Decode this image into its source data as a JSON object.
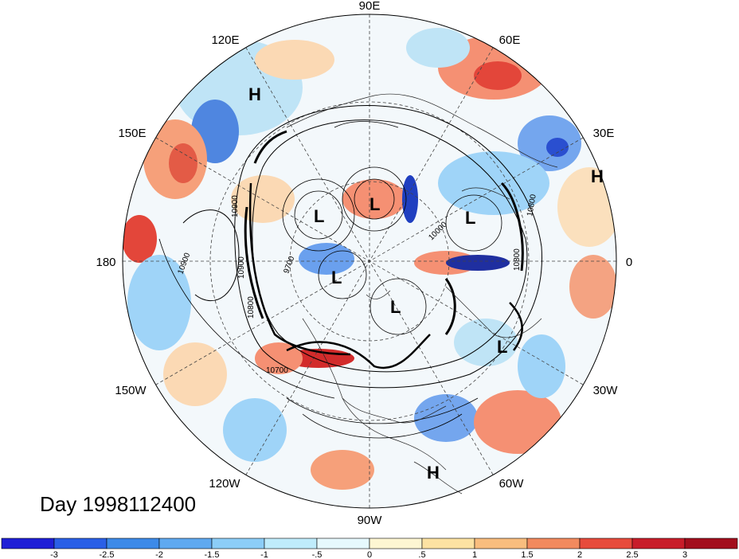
{
  "map": {
    "projection": "north polar stereographic",
    "longitude_labels": [
      "90E",
      "60E",
      "30E",
      "0",
      "30W",
      "60W",
      "90W",
      "120W",
      "150W",
      "180",
      "150E",
      "120E"
    ],
    "contour_labels": [
      "10900",
      "10900",
      "10900",
      "10800",
      "10800",
      "10700",
      "9700",
      "10000",
      "10800"
    ],
    "center_marks": [
      {
        "type": "H",
        "label": "H"
      },
      {
        "type": "L",
        "label": "L"
      },
      {
        "type": "L",
        "label": "L"
      },
      {
        "type": "L",
        "label": "L"
      },
      {
        "type": "H",
        "label": "H"
      },
      {
        "type": "L",
        "label": "L"
      },
      {
        "type": "L",
        "label": "L"
      },
      {
        "type": "L",
        "label": "L"
      },
      {
        "type": "H",
        "label": "H"
      }
    ]
  },
  "title": {
    "day_label": "Day 1998112400"
  },
  "colorbar": {
    "tick_labels": [
      "-3",
      "-2.5",
      "-2",
      "-1.5",
      "-1",
      "-.5",
      "0",
      ".5",
      "1",
      "1.5",
      "2",
      "2.5",
      "3"
    ],
    "colors": [
      "#1f1fd6",
      "#2a5fe6",
      "#3d8ae8",
      "#5fa9f0",
      "#8ccdf7",
      "#bfecfb",
      "#e6f9fd",
      "#fdf6d2",
      "#fce2a2",
      "#f9bd7e",
      "#f28a5e",
      "#e74b3c",
      "#c81d2a",
      "#a30f1d"
    ]
  }
}
